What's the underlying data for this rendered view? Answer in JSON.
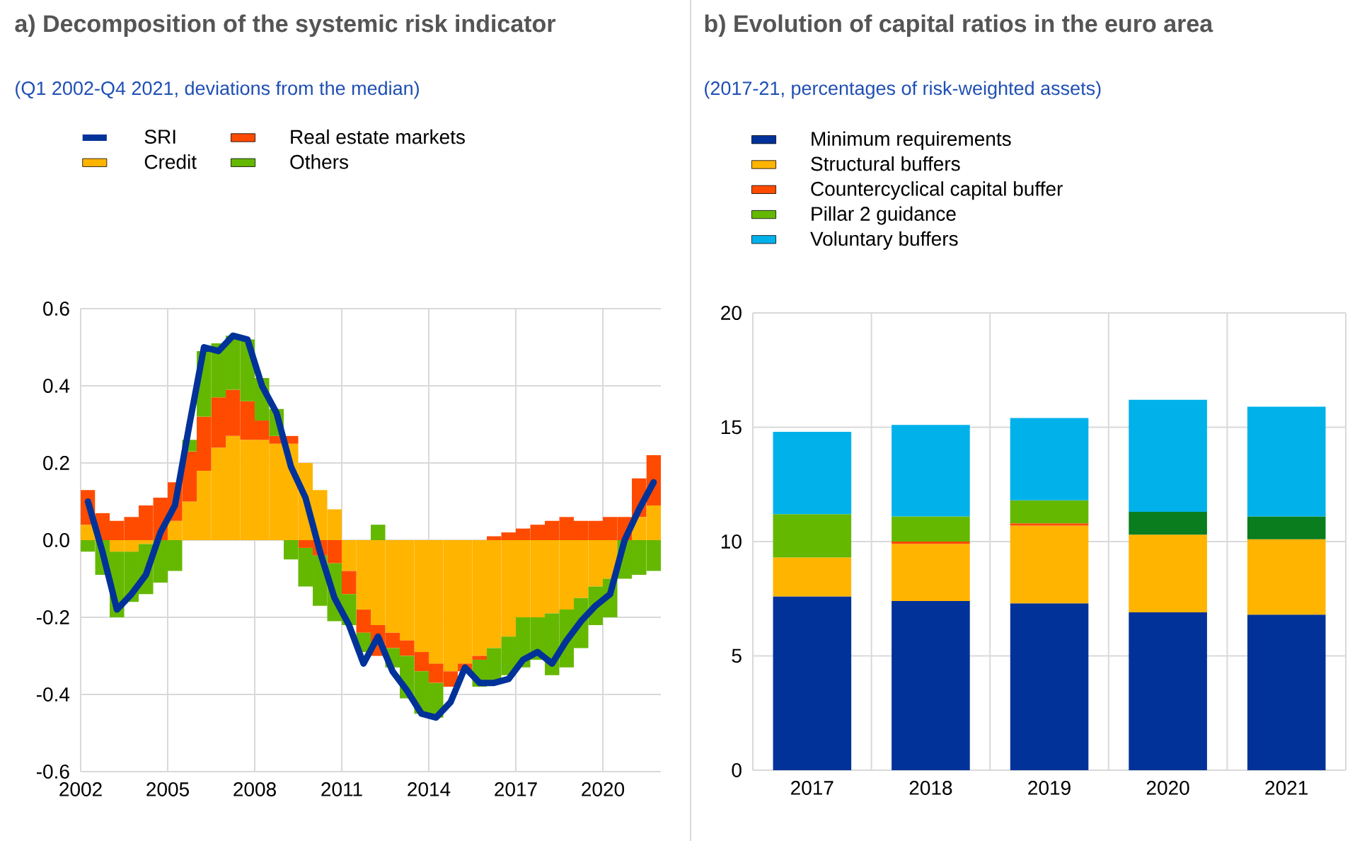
{
  "chart_data": [
    {
      "type": "bar",
      "stacked": true,
      "title": "a) Decomposition of the systemic risk indicator",
      "subtitle": "(Q1 2002-Q4 2021, deviations from the median)",
      "x": [
        2002.25,
        2002.75,
        2003.25,
        2003.75,
        2004.25,
        2004.75,
        2005.25,
        2005.75,
        2006.25,
        2006.75,
        2007.25,
        2007.75,
        2008.25,
        2008.75,
        2009.25,
        2009.75,
        2010.25,
        2010.75,
        2011.25,
        2011.75,
        2012.25,
        2012.75,
        2013.25,
        2013.75,
        2014.25,
        2014.75,
        2015.25,
        2015.75,
        2016.25,
        2016.75,
        2017.25,
        2017.75,
        2018.25,
        2018.75,
        2019.25,
        2019.75,
        2020.25,
        2020.75,
        2021.25,
        2021.75
      ],
      "series": [
        {
          "name": "SRI",
          "type": "line",
          "color": "#003299",
          "values": [
            0.1,
            -0.03,
            -0.18,
            -0.14,
            -0.09,
            0.02,
            0.09,
            0.3,
            0.5,
            0.49,
            0.53,
            0.52,
            0.4,
            0.33,
            0.19,
            0.11,
            -0.03,
            -0.15,
            -0.22,
            -0.32,
            -0.25,
            -0.34,
            -0.39,
            -0.45,
            -0.46,
            -0.42,
            -0.33,
            -0.37,
            -0.37,
            -0.36,
            -0.31,
            -0.29,
            -0.32,
            -0.26,
            -0.21,
            -0.17,
            -0.14,
            0.0,
            0.08,
            0.15
          ]
        },
        {
          "name": "Credit",
          "color": "#ffb400",
          "values": [
            0.04,
            null,
            -0.03,
            -0.03,
            -0.01,
            0.0,
            0.05,
            0.1,
            0.18,
            0.24,
            0.27,
            0.26,
            0.26,
            0.25,
            0.25,
            0.2,
            0.13,
            0.08,
            -0.08,
            -0.18,
            -0.22,
            -0.24,
            -0.26,
            -0.29,
            -0.32,
            -0.34,
            -0.32,
            -0.3,
            -0.28,
            -0.25,
            -0.2,
            -0.2,
            -0.19,
            -0.18,
            -0.15,
            -0.12,
            -0.1,
            null,
            0.06,
            0.09
          ]
        },
        {
          "name": "Real estate markets",
          "color": "#ff4b00",
          "values": [
            0.09,
            0.07,
            0.05,
            0.06,
            0.09,
            0.11,
            0.1,
            0.13,
            0.14,
            0.13,
            0.12,
            0.1,
            0.05,
            0.02,
            0.02,
            -0.02,
            -0.04,
            -0.06,
            -0.06,
            -0.06,
            -0.08,
            -0.04,
            -0.04,
            -0.05,
            -0.05,
            -0.04,
            -0.02,
            -0.01,
            0.01,
            0.02,
            0.03,
            0.04,
            0.05,
            0.06,
            0.05,
            0.05,
            0.06,
            0.06,
            0.1,
            0.13
          ]
        },
        {
          "name": "Others",
          "color": "#65b800",
          "values": [
            -0.03,
            -0.09,
            -0.17,
            -0.13,
            -0.13,
            -0.11,
            -0.08,
            0.03,
            0.17,
            0.14,
            0.14,
            0.16,
            0.11,
            0.07,
            -0.05,
            -0.1,
            -0.13,
            -0.15,
            -0.08,
            -0.05,
            0.04,
            -0.05,
            -0.11,
            -0.11,
            -0.09,
            null,
            null,
            -0.07,
            -0.09,
            -0.1,
            -0.13,
            -0.11,
            -0.16,
            -0.15,
            -0.13,
            -0.1,
            -0.1,
            -0.1,
            -0.09,
            -0.08
          ]
        }
      ],
      "xlim": [
        2002,
        2022
      ],
      "xticks": [
        2002,
        2005,
        2008,
        2011,
        2014,
        2017,
        2020
      ],
      "ylim": [
        -0.6,
        0.6
      ],
      "yticks": [
        {
          "value": -0.6,
          "label": "-0.6"
        },
        {
          "value": -0.4,
          "label": "-0.4"
        },
        {
          "value": -0.2,
          "label": "-0.2"
        },
        {
          "value": 0,
          "label": "0.0"
        },
        {
          "value": 0.2,
          "label": "0.2"
        },
        {
          "value": 0.4,
          "label": "0.4"
        },
        {
          "value": 0.6,
          "label": "0.6"
        }
      ],
      "grid": true,
      "legend": "top"
    },
    {
      "type": "bar",
      "stacked": true,
      "title": "b) Evolution of capital ratios in the euro area",
      "subtitle": "(2017-21, percentages of risk-weighted assets)",
      "categories": [
        "2017",
        "2018",
        "2019",
        "2020",
        "2021"
      ],
      "series": [
        {
          "name": "Minimum requirements",
          "color": "#003299",
          "values": [
            7.6,
            7.4,
            7.3,
            6.9,
            6.8
          ]
        },
        {
          "name": "Structural buffers",
          "color": "#ffb400",
          "values": [
            1.7,
            2.5,
            3.4,
            3.4,
            3.3
          ]
        },
        {
          "name": "Countercyclical capital buffer",
          "color": "#ff4b00",
          "values": [
            0,
            0.1,
            0.1,
            0,
            0
          ]
        },
        {
          "name": "Pillar 2 guidance",
          "color": "#65b800",
          "colors": [
            "#65b800",
            "#65b800",
            "#65b800",
            "#0a7d1e",
            "#0a7d1e"
          ],
          "values": [
            1.9,
            1.1,
            1.0,
            1.0,
            1.0
          ]
        },
        {
          "name": "Voluntary buffers",
          "color": "#00b1ea",
          "values": [
            3.6,
            4.0,
            3.6,
            4.9,
            4.8
          ]
        }
      ],
      "ylim": [
        0,
        20
      ],
      "yticks": [
        0,
        5,
        10,
        15,
        20
      ],
      "grid": true,
      "legend": "top"
    }
  ]
}
